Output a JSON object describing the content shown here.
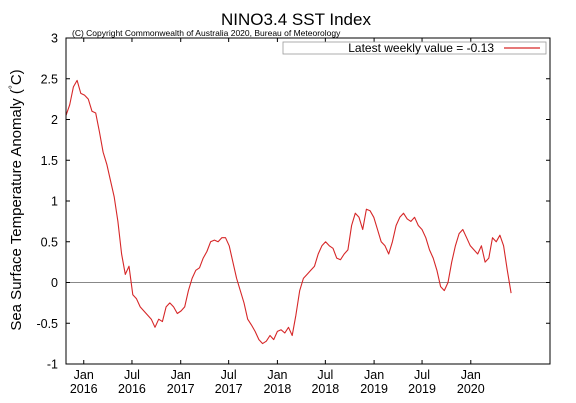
{
  "chart_data": {
    "type": "line",
    "title": "NINO3.4 SST Index",
    "subtitle": "(C) Copyright Commonwealth of Australia 2020, Bureau of Meteorology",
    "ylabel": "Sea Surface Temperature Anomaly (°C)",
    "xlabel": "",
    "ylim": [
      -1,
      3
    ],
    "xlim": [
      "2015-10-26",
      "2020-10-26"
    ],
    "grid": false,
    "zero_line": true,
    "legend_position": "top-right",
    "legend_label": "Latest weekly value = -0.13",
    "line_color": "#d62728",
    "y_ticks": [
      -1,
      -0.5,
      0,
      0.5,
      1,
      1.5,
      2,
      2.5,
      3
    ],
    "y_tick_labels": [
      "-1",
      "-0.5",
      "0",
      "0.5",
      "1",
      "1.5",
      "2",
      "2.5",
      "3"
    ],
    "x_ticks": [
      {
        "date": "2016-01-01",
        "line1": "Jan",
        "line2": "2016"
      },
      {
        "date": "2016-07-01",
        "line1": "Jul",
        "line2": "2016"
      },
      {
        "date": "2017-01-01",
        "line1": "Jan",
        "line2": "2017"
      },
      {
        "date": "2017-07-01",
        "line1": "Jul",
        "line2": "2017"
      },
      {
        "date": "2018-01-01",
        "line1": "Jan",
        "line2": "2018"
      },
      {
        "date": "2018-07-01",
        "line1": "Jul",
        "line2": "2018"
      },
      {
        "date": "2019-01-01",
        "line1": "Jan",
        "line2": "2019"
      },
      {
        "date": "2019-07-01",
        "line1": "Jul",
        "line2": "2019"
      },
      {
        "date": "2020-01-01",
        "line1": "Jan",
        "line2": "2020"
      }
    ],
    "series": [
      {
        "name": "Latest weekly value = -0.13",
        "points": [
          [
            "2015-10-26",
            2.05
          ],
          [
            "2015-11-09",
            2.18
          ],
          [
            "2015-11-23",
            2.4
          ],
          [
            "2015-12-07",
            2.48
          ],
          [
            "2015-12-21",
            2.32
          ],
          [
            "2016-01-04",
            2.3
          ],
          [
            "2016-01-18",
            2.25
          ],
          [
            "2016-02-01",
            2.1
          ],
          [
            "2016-02-15",
            2.08
          ],
          [
            "2016-02-29",
            1.85
          ],
          [
            "2016-03-14",
            1.6
          ],
          [
            "2016-03-28",
            1.45
          ],
          [
            "2016-04-11",
            1.25
          ],
          [
            "2016-04-25",
            1.05
          ],
          [
            "2016-05-09",
            0.75
          ],
          [
            "2016-05-23",
            0.35
          ],
          [
            "2016-06-06",
            0.1
          ],
          [
            "2016-06-20",
            0.2
          ],
          [
            "2016-07-04",
            -0.15
          ],
          [
            "2016-07-18",
            -0.2
          ],
          [
            "2016-08-01",
            -0.3
          ],
          [
            "2016-08-15",
            -0.35
          ],
          [
            "2016-08-29",
            -0.4
          ],
          [
            "2016-09-12",
            -0.45
          ],
          [
            "2016-09-26",
            -0.55
          ],
          [
            "2016-10-10",
            -0.45
          ],
          [
            "2016-10-24",
            -0.48
          ],
          [
            "2016-11-07",
            -0.3
          ],
          [
            "2016-11-21",
            -0.25
          ],
          [
            "2016-12-05",
            -0.3
          ],
          [
            "2016-12-19",
            -0.38
          ],
          [
            "2017-01-02",
            -0.35
          ],
          [
            "2017-01-16",
            -0.3
          ],
          [
            "2017-01-30",
            -0.1
          ],
          [
            "2017-02-13",
            0.05
          ],
          [
            "2017-02-27",
            0.15
          ],
          [
            "2017-03-13",
            0.18
          ],
          [
            "2017-03-27",
            0.3
          ],
          [
            "2017-04-10",
            0.38
          ],
          [
            "2017-04-24",
            0.5
          ],
          [
            "2017-05-08",
            0.52
          ],
          [
            "2017-05-22",
            0.5
          ],
          [
            "2017-06-05",
            0.55
          ],
          [
            "2017-06-19",
            0.55
          ],
          [
            "2017-07-03",
            0.45
          ],
          [
            "2017-07-17",
            0.25
          ],
          [
            "2017-07-31",
            0.05
          ],
          [
            "2017-08-14",
            -0.1
          ],
          [
            "2017-08-28",
            -0.25
          ],
          [
            "2017-09-11",
            -0.45
          ],
          [
            "2017-09-25",
            -0.52
          ],
          [
            "2017-10-09",
            -0.6
          ],
          [
            "2017-10-23",
            -0.7
          ],
          [
            "2017-11-06",
            -0.75
          ],
          [
            "2017-11-20",
            -0.72
          ],
          [
            "2017-12-04",
            -0.65
          ],
          [
            "2017-12-18",
            -0.7
          ],
          [
            "2018-01-01",
            -0.6
          ],
          [
            "2018-01-15",
            -0.58
          ],
          [
            "2018-01-29",
            -0.62
          ],
          [
            "2018-02-12",
            -0.55
          ],
          [
            "2018-02-26",
            -0.65
          ],
          [
            "2018-03-12",
            -0.4
          ],
          [
            "2018-03-26",
            -0.1
          ],
          [
            "2018-04-09",
            0.05
          ],
          [
            "2018-04-23",
            0.1
          ],
          [
            "2018-05-07",
            0.15
          ],
          [
            "2018-05-21",
            0.2
          ],
          [
            "2018-06-04",
            0.35
          ],
          [
            "2018-06-18",
            0.45
          ],
          [
            "2018-07-02",
            0.5
          ],
          [
            "2018-07-16",
            0.45
          ],
          [
            "2018-07-30",
            0.42
          ],
          [
            "2018-08-13",
            0.3
          ],
          [
            "2018-08-27",
            0.28
          ],
          [
            "2018-09-10",
            0.35
          ],
          [
            "2018-09-24",
            0.4
          ],
          [
            "2018-10-08",
            0.7
          ],
          [
            "2018-10-22",
            0.85
          ],
          [
            "2018-11-05",
            0.8
          ],
          [
            "2018-11-19",
            0.65
          ],
          [
            "2018-12-03",
            0.9
          ],
          [
            "2018-12-17",
            0.88
          ],
          [
            "2018-12-31",
            0.8
          ],
          [
            "2019-01-14",
            0.65
          ],
          [
            "2019-01-28",
            0.5
          ],
          [
            "2019-02-11",
            0.45
          ],
          [
            "2019-02-25",
            0.35
          ],
          [
            "2019-03-11",
            0.5
          ],
          [
            "2019-03-25",
            0.7
          ],
          [
            "2019-04-08",
            0.8
          ],
          [
            "2019-04-22",
            0.85
          ],
          [
            "2019-05-06",
            0.78
          ],
          [
            "2019-05-20",
            0.75
          ],
          [
            "2019-06-03",
            0.8
          ],
          [
            "2019-06-17",
            0.7
          ],
          [
            "2019-07-01",
            0.65
          ],
          [
            "2019-07-15",
            0.55
          ],
          [
            "2019-07-29",
            0.4
          ],
          [
            "2019-08-12",
            0.3
          ],
          [
            "2019-08-26",
            0.15
          ],
          [
            "2019-09-09",
            -0.05
          ],
          [
            "2019-09-23",
            -0.1
          ],
          [
            "2019-10-07",
            0.0
          ],
          [
            "2019-10-21",
            0.25
          ],
          [
            "2019-11-04",
            0.45
          ],
          [
            "2019-11-18",
            0.6
          ],
          [
            "2019-12-02",
            0.65
          ],
          [
            "2019-12-16",
            0.55
          ],
          [
            "2019-12-30",
            0.45
          ],
          [
            "2020-01-13",
            0.4
          ],
          [
            "2020-01-27",
            0.35
          ],
          [
            "2020-02-10",
            0.45
          ],
          [
            "2020-02-24",
            0.25
          ],
          [
            "2020-03-09",
            0.3
          ],
          [
            "2020-03-23",
            0.55
          ],
          [
            "2020-04-06",
            0.5
          ],
          [
            "2020-04-20",
            0.58
          ],
          [
            "2020-05-04",
            0.45
          ],
          [
            "2020-05-18",
            0.15
          ],
          [
            "2020-06-01",
            -0.13
          ]
        ]
      }
    ]
  }
}
